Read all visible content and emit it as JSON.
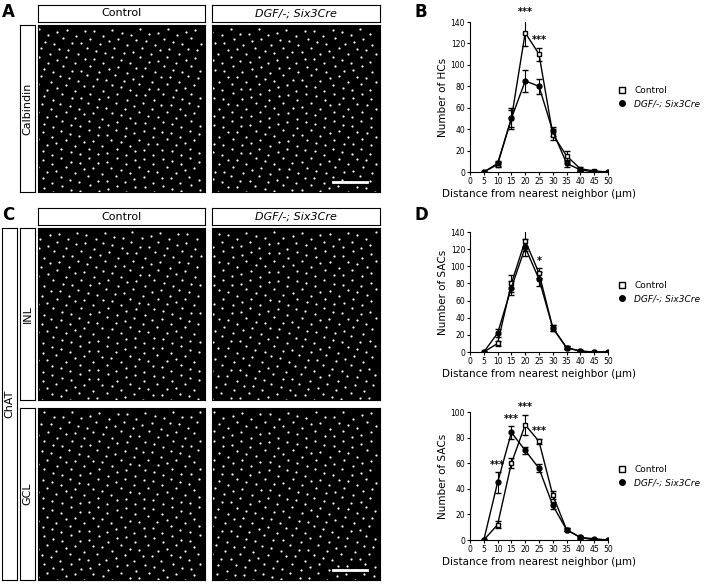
{
  "panel_labels": [
    "A",
    "B",
    "C",
    "D"
  ],
  "image_panels": {
    "column_headers": [
      "Control",
      "DGF/-; Six3Cre"
    ],
    "A": {
      "row_label": "Calbindin"
    },
    "C": {
      "group_label": "ChAT",
      "row_labels": [
        "INL",
        "GCL"
      ]
    }
  },
  "chart_data": [
    {
      "type": "line",
      "panel": "B",
      "x_label": "Distance from nearest neighbor (μm)",
      "y_label": "Number of HCs",
      "x": [
        5,
        10,
        15,
        20,
        25,
        30,
        35,
        40,
        45,
        50
      ],
      "xlim": [
        0,
        50
      ],
      "xticks": [
        0,
        5,
        10,
        15,
        20,
        25,
        30,
        35,
        40,
        45,
        50
      ],
      "ylim": [
        0,
        140
      ],
      "yticks": [
        0,
        20,
        40,
        60,
        80,
        100,
        120,
        140
      ],
      "legend": "right",
      "series": [
        {
          "name": "Control",
          "color": "#000000",
          "marker": "open_square",
          "values": [
            0,
            7,
            50,
            130,
            110,
            35,
            15,
            3,
            1,
            0
          ],
          "errors": [
            0,
            2,
            8,
            12,
            6,
            5,
            5,
            2,
            1,
            0
          ]
        },
        {
          "name": "DGF/-; Six3Cre",
          "color": "#000000",
          "marker": "circle",
          "values": [
            0,
            8,
            50,
            85,
            80,
            38,
            8,
            2,
            0,
            0
          ],
          "errors": [
            0,
            2,
            10,
            10,
            7,
            4,
            3,
            1,
            0,
            0
          ]
        }
      ],
      "annotations": [
        {
          "x": 20,
          "text": "***"
        },
        {
          "x": 25,
          "text": "***"
        }
      ]
    },
    {
      "type": "line",
      "panel": "D",
      "x_label": "Distance from nearest neighbor (μm)",
      "y_label": "Number of SACs",
      "x": [
        5,
        10,
        15,
        20,
        25,
        30,
        35,
        40,
        45,
        50
      ],
      "xlim": [
        0,
        50
      ],
      "xticks": [
        0,
        5,
        10,
        15,
        20,
        25,
        30,
        35,
        40,
        45,
        50
      ],
      "ylim": [
        0,
        140
      ],
      "yticks": [
        0,
        20,
        40,
        60,
        80,
        100,
        120,
        140
      ],
      "legend": "right",
      "series": [
        {
          "name": "Control",
          "color": "#000000",
          "marker": "open_square",
          "values": [
            0,
            10,
            80,
            130,
            92,
            28,
            5,
            1,
            0,
            0
          ],
          "errors": [
            0,
            3,
            10,
            12,
            6,
            3,
            2,
            1,
            0,
            0
          ]
        },
        {
          "name": "DGF/-; Six3Cre",
          "color": "#000000",
          "marker": "circle",
          "values": [
            0,
            22,
            75,
            122,
            85,
            28,
            5,
            1,
            0,
            0
          ],
          "errors": [
            0,
            5,
            8,
            10,
            8,
            3,
            2,
            1,
            0,
            0
          ]
        }
      ],
      "annotations": [
        {
          "x": 25,
          "text": "*"
        }
      ]
    },
    {
      "type": "line",
      "panel": "D",
      "x_label": "Distance from nearest neighbor (μm)",
      "y_label": "Number of SACs",
      "x": [
        5,
        10,
        15,
        20,
        25,
        30,
        35,
        40,
        45,
        50
      ],
      "xlim": [
        0,
        50
      ],
      "xticks": [
        0,
        5,
        10,
        15,
        20,
        25,
        30,
        35,
        40,
        45,
        50
      ],
      "ylim": [
        0,
        100
      ],
      "yticks": [
        0,
        20,
        40,
        60,
        80,
        100
      ],
      "legend": "right",
      "series": [
        {
          "name": "Control",
          "color": "#000000",
          "marker": "open_square",
          "values": [
            0,
            12,
            60,
            90,
            77,
            35,
            8,
            2,
            0,
            0
          ],
          "errors": [
            0,
            3,
            4,
            8,
            2,
            3,
            1,
            1,
            0,
            0
          ]
        },
        {
          "name": "DGF/-; Six3Cre",
          "color": "#000000",
          "marker": "circle",
          "values": [
            0,
            45,
            84,
            70,
            56,
            27,
            8,
            2,
            1,
            0
          ],
          "errors": [
            0,
            8,
            5,
            3,
            3,
            3,
            1,
            1,
            0,
            0
          ]
        }
      ],
      "annotations": [
        {
          "x": 10,
          "text": "***"
        },
        {
          "x": 15,
          "text": "***"
        },
        {
          "x": 20,
          "text": "***"
        },
        {
          "x": 25,
          "text": "***"
        }
      ]
    }
  ]
}
